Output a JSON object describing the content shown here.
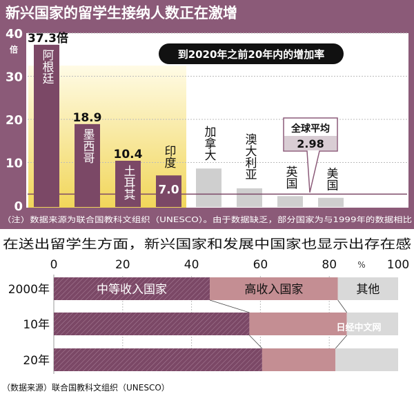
{
  "colors": {
    "frame": "#8b5a78",
    "bar_emerging": "#7b4866",
    "bar_developed": "#cfcfcf",
    "high_income": "#c48e93",
    "other": "#d9d9d9",
    "highlight": "#f3dd6c"
  },
  "chart_data": [
    {
      "type": "bar",
      "title": "新兴国家的留学生接纳人数正在激增",
      "subtitle": "到2020年之前20年内的增加率",
      "ylabel": "倍",
      "ylim": [
        0,
        40
      ],
      "yticks": [
        "0",
        "10",
        "20",
        "30",
        "40"
      ],
      "grid": true,
      "categories": [
        "阿根廷",
        "墨西哥",
        "土耳其",
        "印度",
        "加拿大",
        "澳大利亚",
        "英国",
        "美国"
      ],
      "values": [
        37.3,
        18.9,
        10.4,
        7.0,
        8.6,
        4.0,
        2.2,
        1.8
      ],
      "value_labels": [
        "37.3倍",
        "18.9",
        "10.4",
        "7.0",
        "",
        "",
        "",
        ""
      ],
      "group": [
        "emerging",
        "emerging",
        "emerging",
        "emerging",
        "developed",
        "developed",
        "developed",
        "developed"
      ],
      "reference_line": {
        "label": "全球平均",
        "value": 2.98,
        "value_label": "2.98"
      },
      "note": "（注）数据来源为联合国教科文组织（UNESCO）。由于数据缺乏，部分国家为与1999年的数据相比"
    },
    {
      "type": "bar",
      "orientation": "horizontal-stacked",
      "title": "在送出留学生方面，新兴国家和发展中国家也显示出存在感",
      "xlim": [
        0,
        100
      ],
      "xticks": [
        "0",
        "20",
        "40",
        "60",
        "80",
        "100"
      ],
      "xunit": "%",
      "categories": [
        "2000年",
        "10年",
        "20年"
      ],
      "series": [
        {
          "name": "中等收入国家",
          "values": [
            45.3,
            56.8,
            60.5
          ]
        },
        {
          "name": "高收入国家",
          "values": [
            37.2,
            28.3,
            21.3
          ]
        },
        {
          "name": "其他",
          "values": [
            17.5,
            14.9,
            18.2
          ]
        }
      ],
      "source": "（数据来源）联合国教科文组织（UNESCO）",
      "watermark": "日经中文网"
    }
  ]
}
